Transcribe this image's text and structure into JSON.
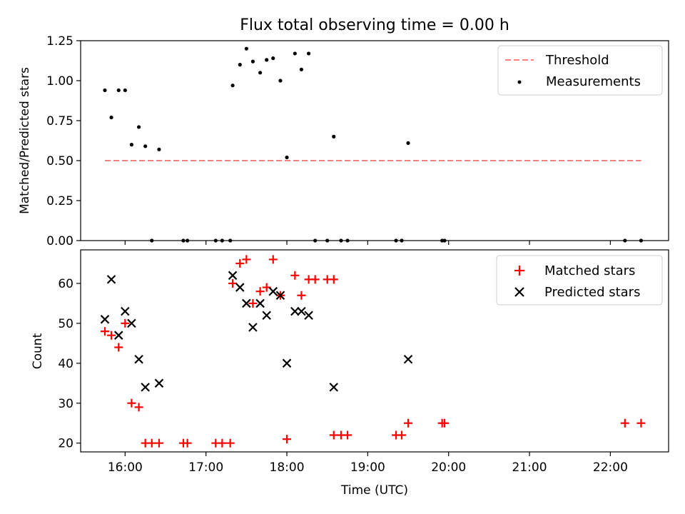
{
  "chart_data": [
    {
      "type": "scatter",
      "title": "Flux total observing time = 0.00 h",
      "ylabel": "Matched/Predicted stars",
      "xlabel": "",
      "xlim": [
        15.45,
        22.72
      ],
      "ylim": [
        0,
        1.25
      ],
      "yticks": [
        "0.00",
        "0.25",
        "0.50",
        "0.75",
        "1.00",
        "1.25"
      ],
      "legend": {
        "position": "top-right",
        "entries": [
          "Threshold",
          "Measurements"
        ]
      },
      "threshold": {
        "name": "Threshold",
        "value": 0.5,
        "x": [
          15.75,
          22.38
        ],
        "color": "#ff7f7f"
      },
      "series": [
        {
          "name": "Measurements",
          "color": "#000000",
          "x": [
            15.75,
            15.83,
            15.92,
            16.0,
            16.08,
            16.17,
            16.25,
            16.42,
            16.33,
            16.72,
            16.77,
            17.12,
            17.2,
            17.3,
            17.33,
            17.42,
            17.5,
            17.58,
            17.67,
            17.75,
            17.83,
            17.92,
            18.0,
            18.1,
            18.18,
            18.27,
            18.35,
            18.5,
            18.58,
            18.67,
            18.75,
            19.35,
            19.42,
            19.5,
            19.92,
            19.95,
            22.18,
            22.38
          ],
          "y": [
            0.94,
            0.77,
            0.94,
            0.94,
            0.6,
            0.71,
            0.59,
            0.57,
            0.0,
            0.0,
            0.0,
            0.0,
            0.0,
            0.0,
            0.97,
            1.1,
            1.2,
            1.12,
            1.05,
            1.13,
            1.14,
            1.0,
            0.52,
            1.17,
            1.07,
            1.17,
            0.0,
            0.0,
            0.65,
            0.0,
            0.0,
            0.0,
            0.0,
            0.61,
            0.0,
            0.0,
            0.0,
            0.0
          ]
        }
      ]
    },
    {
      "type": "scatter",
      "title": "",
      "ylabel": "Count",
      "xlabel": "Time (UTC)",
      "xlim": [
        15.45,
        22.72
      ],
      "ylim": [
        17.8,
        68.4
      ],
      "xticks": [
        {
          "v": 16,
          "label": "16:00"
        },
        {
          "v": 17,
          "label": "17:00"
        },
        {
          "v": 18,
          "label": "18:00"
        },
        {
          "v": 19,
          "label": "19:00"
        },
        {
          "v": 20,
          "label": "20:00"
        },
        {
          "v": 21,
          "label": "21:00"
        },
        {
          "v": 22,
          "label": "22:00"
        }
      ],
      "yticks": [
        "20",
        "30",
        "40",
        "50",
        "60"
      ],
      "legend": {
        "position": "top-right",
        "entries": [
          "Matched stars",
          "Predicted stars"
        ]
      },
      "series": [
        {
          "name": "Matched stars",
          "color": "#ff0000",
          "marker": "plus",
          "x": [
            15.75,
            15.83,
            15.92,
            16.0,
            16.08,
            16.17,
            16.25,
            16.33,
            16.42,
            16.72,
            16.77,
            17.12,
            17.2,
            17.3,
            17.33,
            17.42,
            17.5,
            17.58,
            17.67,
            17.75,
            17.83,
            17.92,
            18.0,
            18.1,
            18.18,
            18.27,
            18.35,
            18.5,
            18.58,
            18.58,
            18.67,
            18.75,
            19.35,
            19.42,
            19.5,
            19.92,
            19.95,
            22.18,
            22.38
          ],
          "y": [
            48,
            47,
            44,
            50,
            30,
            29,
            20,
            20,
            20,
            20,
            20,
            20,
            20,
            20,
            60,
            65,
            66,
            55,
            58,
            59,
            66,
            57,
            21,
            62,
            57,
            61,
            61,
            61,
            61,
            22,
            22,
            22,
            22,
            22,
            25,
            25,
            25,
            25,
            25
          ]
        },
        {
          "name": "Predicted stars",
          "color": "#000000",
          "marker": "x",
          "x": [
            15.75,
            15.83,
            15.92,
            16.0,
            16.08,
            16.17,
            16.25,
            16.42,
            17.33,
            17.42,
            17.5,
            17.58,
            17.67,
            17.75,
            17.83,
            17.92,
            18.0,
            18.1,
            18.18,
            18.27,
            18.58,
            19.5
          ],
          "y": [
            51,
            61,
            47,
            53,
            50,
            41,
            34,
            35,
            62,
            59,
            55,
            49,
            55,
            52,
            58,
            57,
            40,
            53,
            53,
            52,
            34,
            41
          ]
        }
      ]
    }
  ]
}
